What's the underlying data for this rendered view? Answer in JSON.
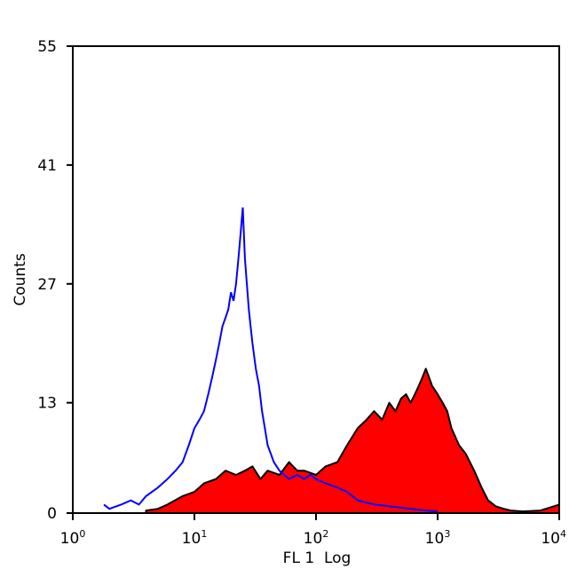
{
  "chart_data": {
    "type": "area",
    "title": "",
    "xlabel": "FL 1  Log",
    "ylabel": "Counts",
    "xscale": "log",
    "xlim": [
      1,
      10000
    ],
    "ylim": [
      0,
      55
    ],
    "x_ticks": [
      {
        "base": "10",
        "exp": "0",
        "value": 1
      },
      {
        "base": "10",
        "exp": "1",
        "value": 10
      },
      {
        "base": "10",
        "exp": "2",
        "value": 100
      },
      {
        "base": "10",
        "exp": "3",
        "value": 1000
      },
      {
        "base": "10",
        "exp": "4",
        "value": 10000
      }
    ],
    "y_ticks": [
      "0",
      "13",
      "27",
      "41",
      "55"
    ],
    "y_tick_values": [
      0,
      13,
      27,
      41,
      55
    ],
    "grid": false,
    "legend": "none",
    "series": [
      {
        "style": "filled",
        "fill_color": "#ff0000",
        "edge_color": "#000000",
        "x": [
          4,
          5,
          6,
          8,
          10,
          12,
          15,
          18,
          22,
          26,
          30,
          35,
          40,
          50,
          60,
          70,
          80,
          100,
          120,
          150,
          180,
          220,
          260,
          300,
          350,
          400,
          450,
          500,
          550,
          600,
          650,
          700,
          750,
          800,
          850,
          900,
          1000,
          1100,
          1200,
          1300,
          1500,
          1700,
          2000,
          2300,
          2600,
          3000,
          3500,
          4000,
          5000,
          7000,
          10000
        ],
        "y": [
          0.3,
          0.5,
          1,
          2,
          2.5,
          3.5,
          4,
          5,
          4.5,
          5,
          5.5,
          4,
          5,
          4.5,
          6,
          5,
          5,
          4.5,
          5.5,
          6,
          8,
          10,
          11,
          12,
          11,
          13,
          12,
          13.5,
          14,
          13,
          14,
          15,
          16,
          17,
          16,
          15,
          14,
          13,
          12,
          10,
          8,
          7,
          5,
          3,
          1.5,
          0.8,
          0.5,
          0.3,
          0.2,
          0.3,
          1
        ]
      },
      {
        "style": "line",
        "line_color": "#0000ff",
        "x": [
          1.8,
          2,
          2.5,
          3,
          3.5,
          4,
          5,
          6,
          7,
          8,
          9,
          10,
          11,
          12,
          13,
          14,
          15,
          16,
          17,
          18,
          19,
          20,
          21,
          22,
          23,
          24,
          25,
          26,
          27,
          28,
          29,
          30,
          32,
          34,
          36,
          38,
          40,
          45,
          50,
          60,
          70,
          80,
          90,
          100,
          120,
          150,
          180,
          220,
          300,
          400,
          600,
          800,
          1000
        ],
        "y": [
          1,
          0.5,
          1,
          1.5,
          1,
          2,
          3,
          4,
          5,
          6,
          8,
          10,
          11,
          12,
          14,
          16,
          18,
          20,
          22,
          23,
          24,
          26,
          25,
          27,
          30,
          33,
          36,
          30,
          27,
          24,
          22,
          20,
          17,
          15,
          12,
          10,
          8,
          6,
          5,
          4,
          4.5,
          4,
          4.5,
          4,
          3.5,
          3,
          2.5,
          1.5,
          1,
          0.8,
          0.5,
          0.3,
          0.2
        ]
      }
    ]
  }
}
